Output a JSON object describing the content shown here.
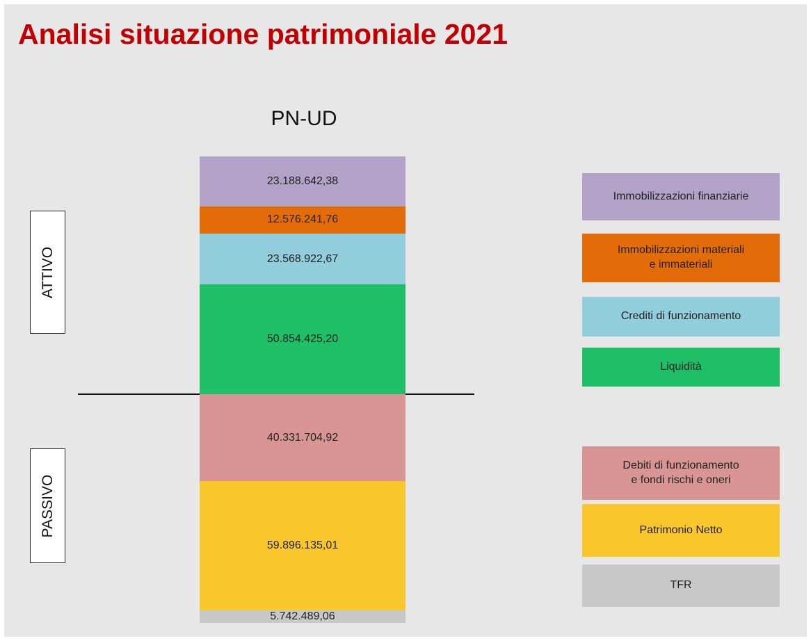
{
  "chart_data": {
    "type": "balance",
    "title": "Analisi situazione patrimoniale 2021",
    "subtitle": "PN-UD",
    "groups": [
      {
        "label": "ATTIVO",
        "series": [
          {
            "name": "Immobilizzazioni finanziarie",
            "color": "#b3a2c7",
            "values": [
              23188642.38
            ],
            "value_labels": [
              "23.188.642,38"
            ]
          },
          {
            "name": "Immobilizzazioni materiali\ne immateriali",
            "color": "#e36c09",
            "values": [
              12576241.76
            ],
            "value_labels": [
              "12.576.241,76"
            ]
          },
          {
            "name": "Crediti di funzionamento",
            "color": "#92cddc",
            "values": [
              23568922.67
            ],
            "value_labels": [
              "23.568.922,67"
            ]
          },
          {
            "name": "Liquidità",
            "color": "#1fbf68",
            "values": [
              50854425.2
            ],
            "value_labels": [
              "50.854.425,20"
            ]
          }
        ]
      },
      {
        "label": "PASSIVO",
        "series": [
          {
            "name": "Debiti di funzionamento\ne fondi rischi e oneri",
            "color": "#d99594",
            "values": [
              40331704.92
            ],
            "value_labels": [
              "40.331.704,92"
            ]
          },
          {
            "name": "Patrimonio Netto",
            "color": "#f9c62b",
            "values": [
              59896135.01
            ],
            "value_labels": [
              "59.896.135,01"
            ]
          },
          {
            "name": "TFR",
            "color": "#c8c8c8",
            "values": [
              5742489.06
            ],
            "value_labels": [
              "5.742.489,06"
            ]
          }
        ]
      }
    ]
  }
}
